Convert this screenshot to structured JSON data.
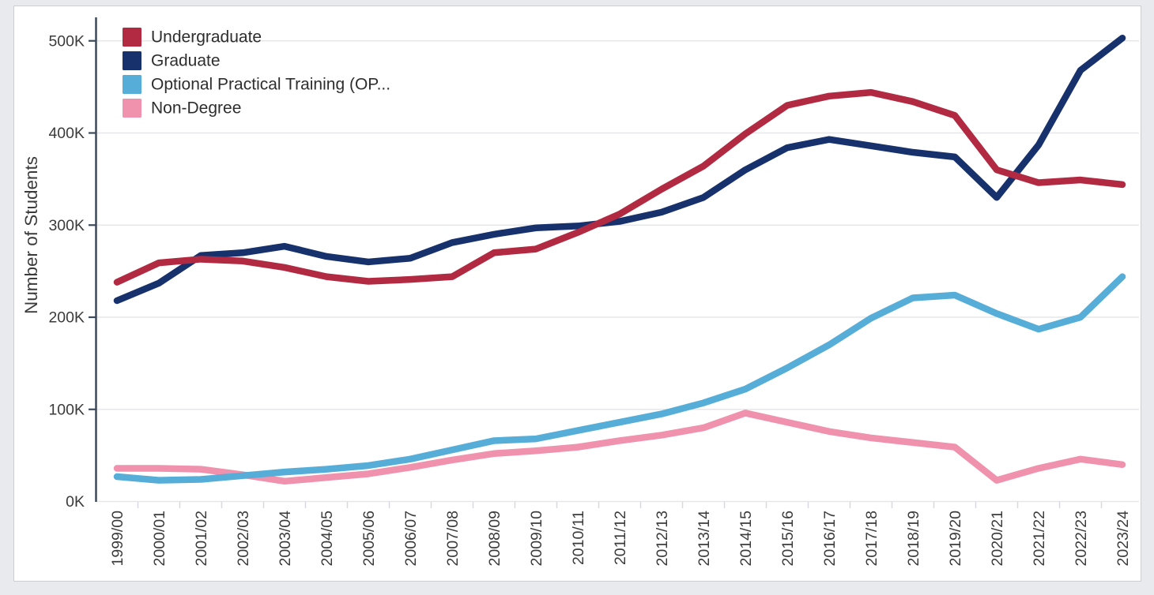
{
  "page": {
    "background": "#e9eaee",
    "panel_background": "#ffffff",
    "panel_border": "#cdced4",
    "axis_color": "#3d4a5c",
    "grid_color": "#e7e7ea",
    "band_tick_color": "#d8d9de",
    "tick_label_color": "#3b3b3b",
    "legend_label_color": "#2e2e2e"
  },
  "chart_data": {
    "type": "line",
    "title": "",
    "xlabel": "",
    "ylabel": "Number of Students",
    "units": "thousands of students",
    "grid": true,
    "legend_position": "top-left",
    "ylim": [
      0,
      525
    ],
    "y_ticks": [
      {
        "label": "0K",
        "value": 0
      },
      {
        "label": "100K",
        "value": 100
      },
      {
        "label": "200K",
        "value": 200
      },
      {
        "label": "300K",
        "value": 300
      },
      {
        "label": "400K",
        "value": 400
      },
      {
        "label": "500K",
        "value": 500
      }
    ],
    "x_categories": [
      "1999/00",
      "2000/01",
      "2001/02",
      "2002/03",
      "2003/04",
      "2004/05",
      "2005/06",
      "2006/07",
      "2007/08",
      "2008/09",
      "2009/10",
      "2010/11",
      "2011/12",
      "2012/13",
      "2013/14",
      "2014/15",
      "2015/16",
      "2016/17",
      "2017/18",
      "2018/19",
      "2019/20",
      "2020/21",
      "2021/22",
      "2022/23",
      "2023/24"
    ],
    "series": [
      {
        "name": "Undergraduate",
        "color": "#b22a42",
        "values_thousands": [
          238,
          259,
          263,
          261,
          254,
          244,
          239,
          241,
          244,
          270,
          274,
          292,
          312,
          339,
          364,
          399,
          430,
          440,
          444,
          434,
          419,
          360,
          346,
          349,
          344
        ]
      },
      {
        "name": "Graduate",
        "color": "#17316d",
        "values_thousands": [
          218,
          237,
          267,
          270,
          277,
          266,
          260,
          264,
          281,
          290,
          297,
          299,
          304,
          314,
          330,
          360,
          384,
          393,
          386,
          379,
          374,
          330,
          387,
          468,
          503
        ]
      },
      {
        "name": "Optional Practical Training (OP...",
        "color": "#56add8",
        "values_thousands": [
          27,
          23,
          24,
          28,
          32,
          35,
          39,
          46,
          56,
          66,
          68,
          77,
          86,
          95,
          107,
          122,
          145,
          170,
          199,
          221,
          224,
          204,
          187,
          200,
          244
        ]
      },
      {
        "name": "Non-Degree",
        "color": "#f092ad",
        "values_thousands": [
          36,
          36,
          35,
          29,
          22,
          26,
          30,
          37,
          45,
          52,
          55,
          59,
          66,
          72,
          80,
          96,
          86,
          76,
          69,
          64,
          59,
          23,
          36,
          46,
          40
        ]
      }
    ]
  }
}
